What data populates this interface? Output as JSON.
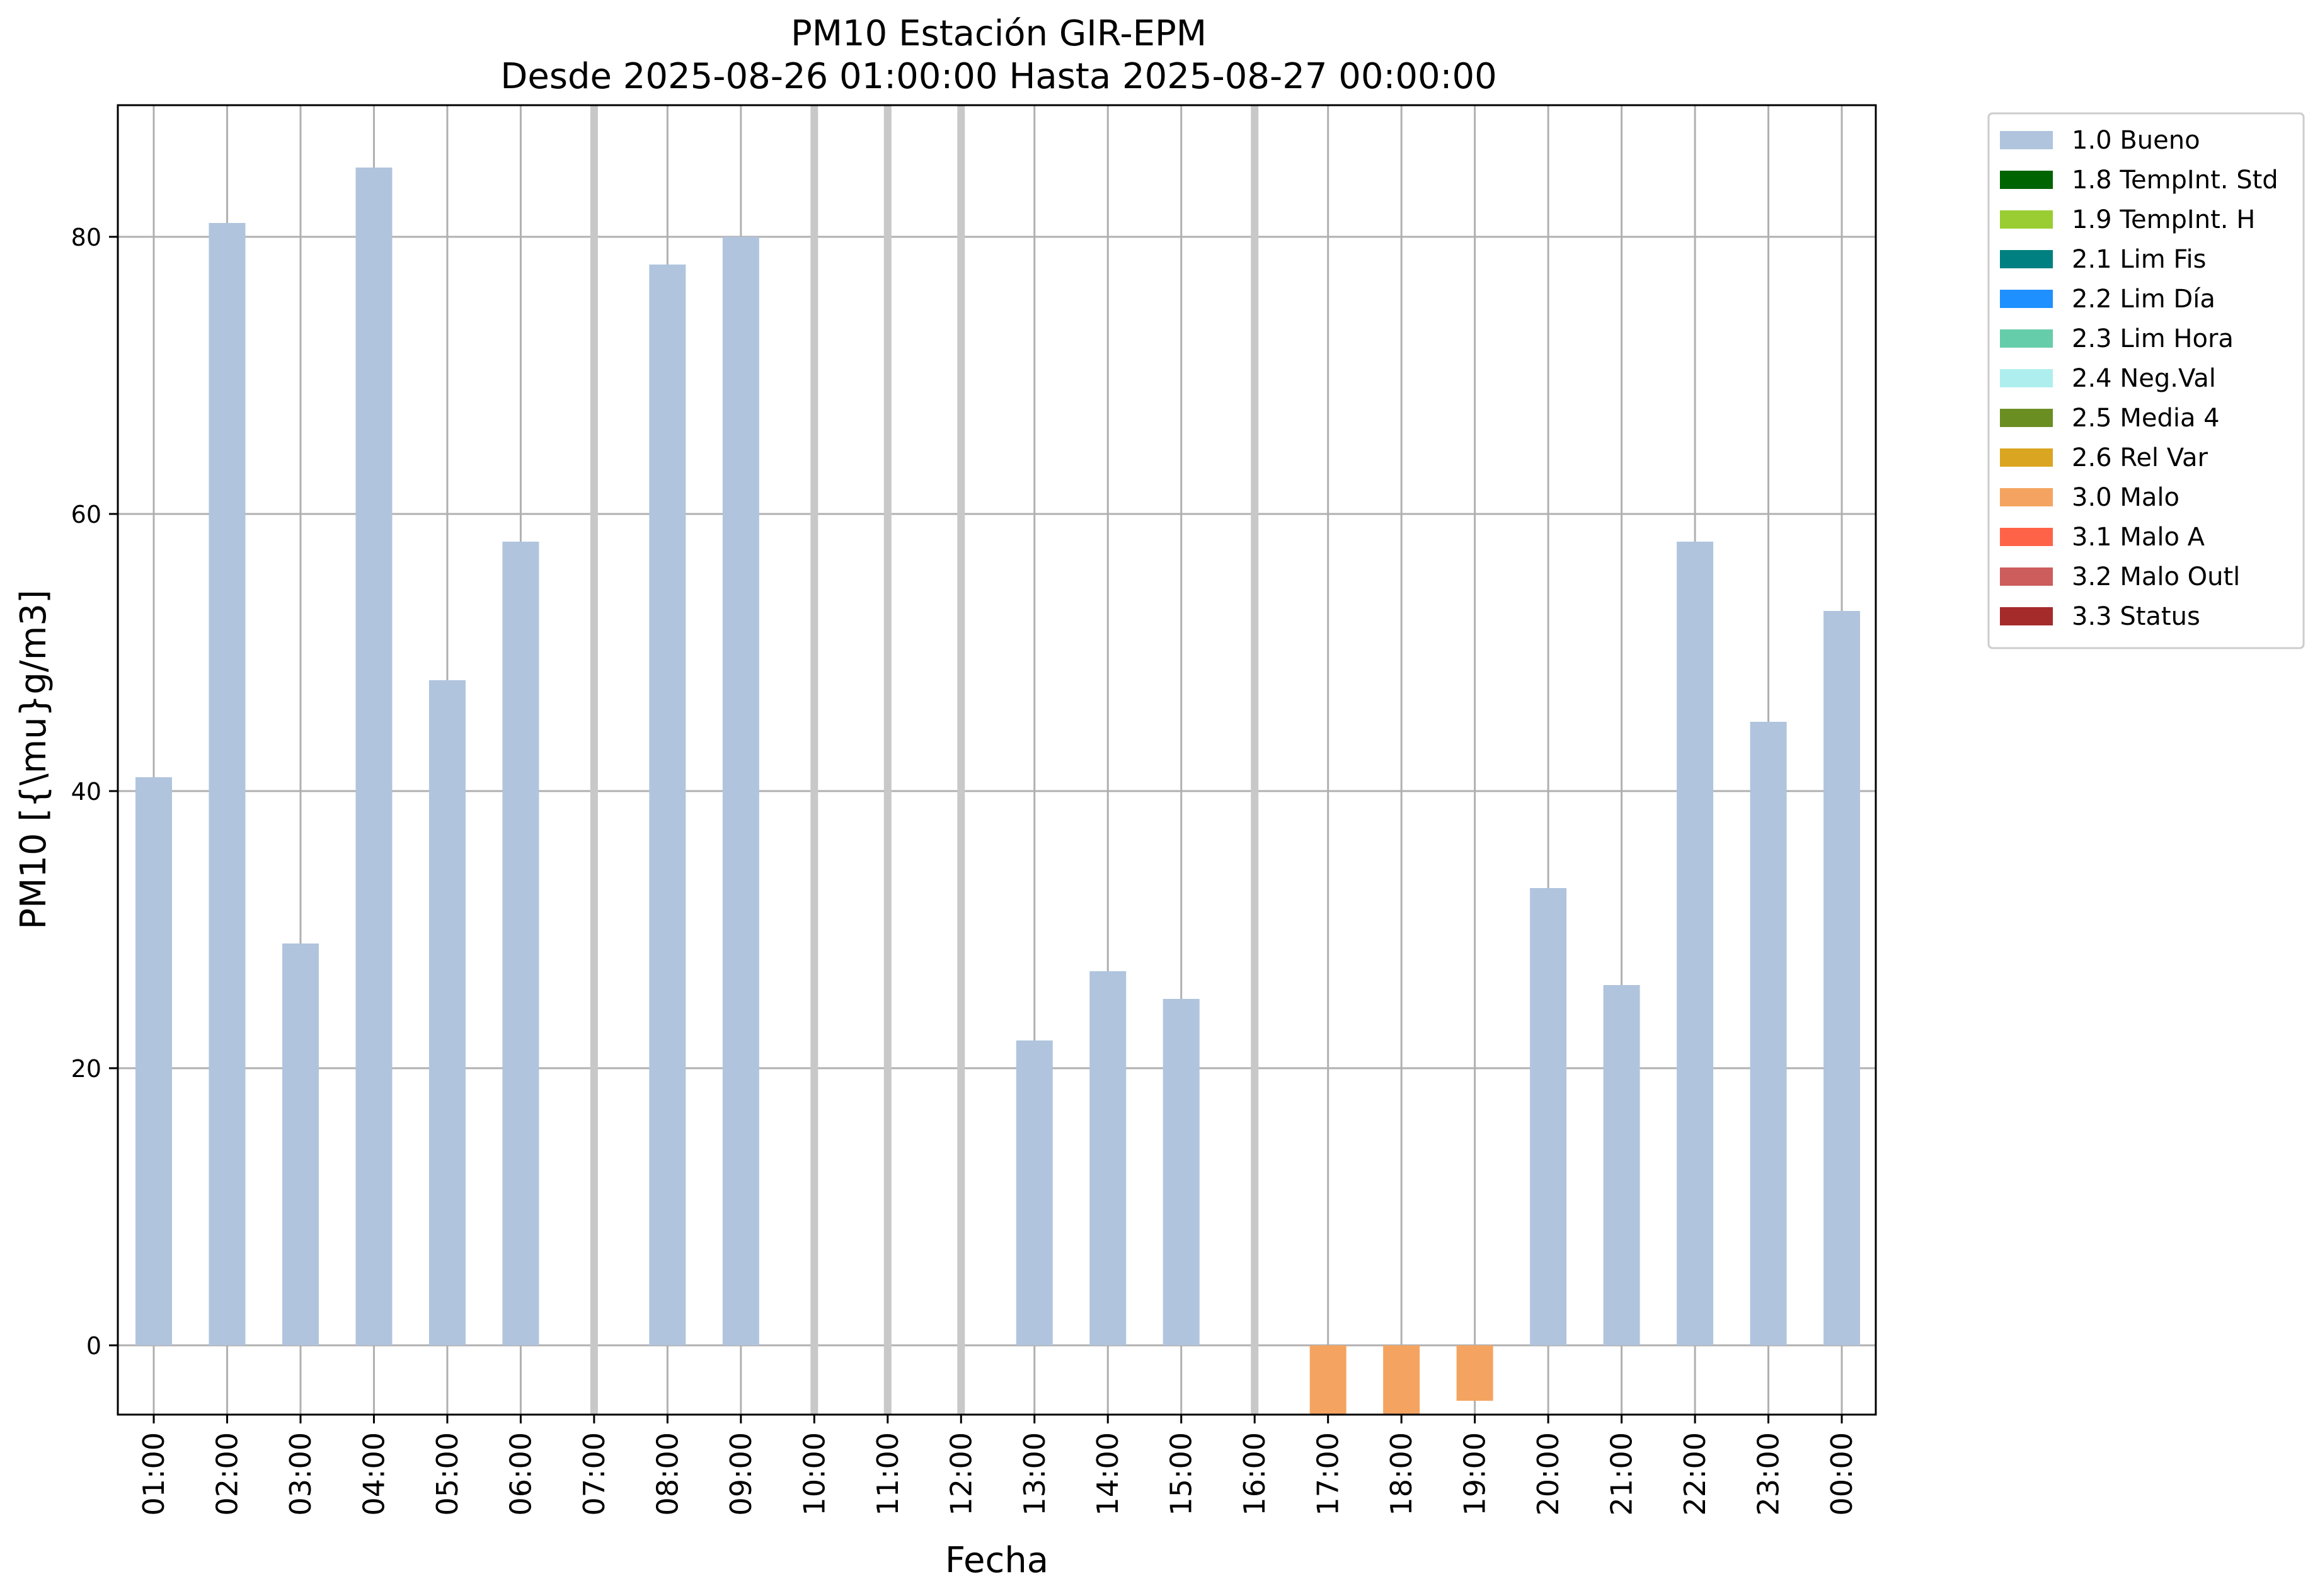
{
  "chart_data": {
    "type": "bar",
    "title": "PM10 Estación GIR-EPM",
    "subtitle": "Desde 2025-08-26 01:00:00 Hasta 2025-08-27 00:00:00",
    "xlabel": "Fecha",
    "ylabel": "PM10 [{\\mu}g/m3]",
    "ylim": [
      -5,
      89.5
    ],
    "yticks": [
      0,
      20,
      40,
      60,
      80
    ],
    "grid": true,
    "legend_position": "outside-right",
    "categories": [
      "01:00",
      "02:00",
      "03:00",
      "04:00",
      "05:00",
      "06:00",
      "07:00",
      "08:00",
      "09:00",
      "10:00",
      "11:00",
      "12:00",
      "13:00",
      "14:00",
      "15:00",
      "16:00",
      "17:00",
      "18:00",
      "19:00",
      "20:00",
      "21:00",
      "22:00",
      "23:00",
      "00:00"
    ],
    "values": [
      41,
      81,
      29,
      85,
      48,
      58,
      null,
      78,
      80,
      null,
      null,
      null,
      22,
      27,
      25,
      null,
      -5,
      -5,
      -4,
      33,
      26,
      58,
      45,
      53
    ],
    "flags": [
      "1.0 Bueno",
      "1.0 Bueno",
      "1.0 Bueno",
      "1.0 Bueno",
      "1.0 Bueno",
      "1.0 Bueno",
      "",
      "1.0 Bueno",
      "1.0 Bueno",
      "",
      "",
      "",
      "1.0 Bueno",
      "1.0 Bueno",
      "1.0 Bueno",
      "",
      "3.0 Malo",
      "3.0 Malo",
      "3.0 Malo",
      "1.0 Bueno",
      "1.0 Bueno",
      "1.0 Bueno",
      "1.0 Bueno",
      "1.0 Bueno"
    ],
    "missing_markers": [
      "07:00",
      "10:00",
      "11:00",
      "12:00",
      "16:00"
    ],
    "legend": [
      {
        "label": "1.0 Bueno",
        "color": "#b0c4de"
      },
      {
        "label": "1.8 TempInt. Std",
        "color": "#006400"
      },
      {
        "label": "1.9 TempInt. H",
        "color": "#9acd32"
      },
      {
        "label": "2.1 Lim Fis",
        "color": "#008080"
      },
      {
        "label": "2.2 Lim Día",
        "color": "#1e90ff"
      },
      {
        "label": "2.3 Lim Hora",
        "color": "#66cdaa"
      },
      {
        "label": "2.4 Neg.Val",
        "color": "#afeeee"
      },
      {
        "label": "2.5 Media 4",
        "color": "#6b8e23"
      },
      {
        "label": "2.6 Rel Var",
        "color": "#daa520"
      },
      {
        "label": "3.0 Malo",
        "color": "#f4a460"
      },
      {
        "label": "3.1 Malo A",
        "color": "#ff6347"
      },
      {
        "label": "3.2 Malo Outl",
        "color": "#cd5c5c"
      },
      {
        "label": "3.3 Status",
        "color": "#a52a2a"
      }
    ]
  }
}
